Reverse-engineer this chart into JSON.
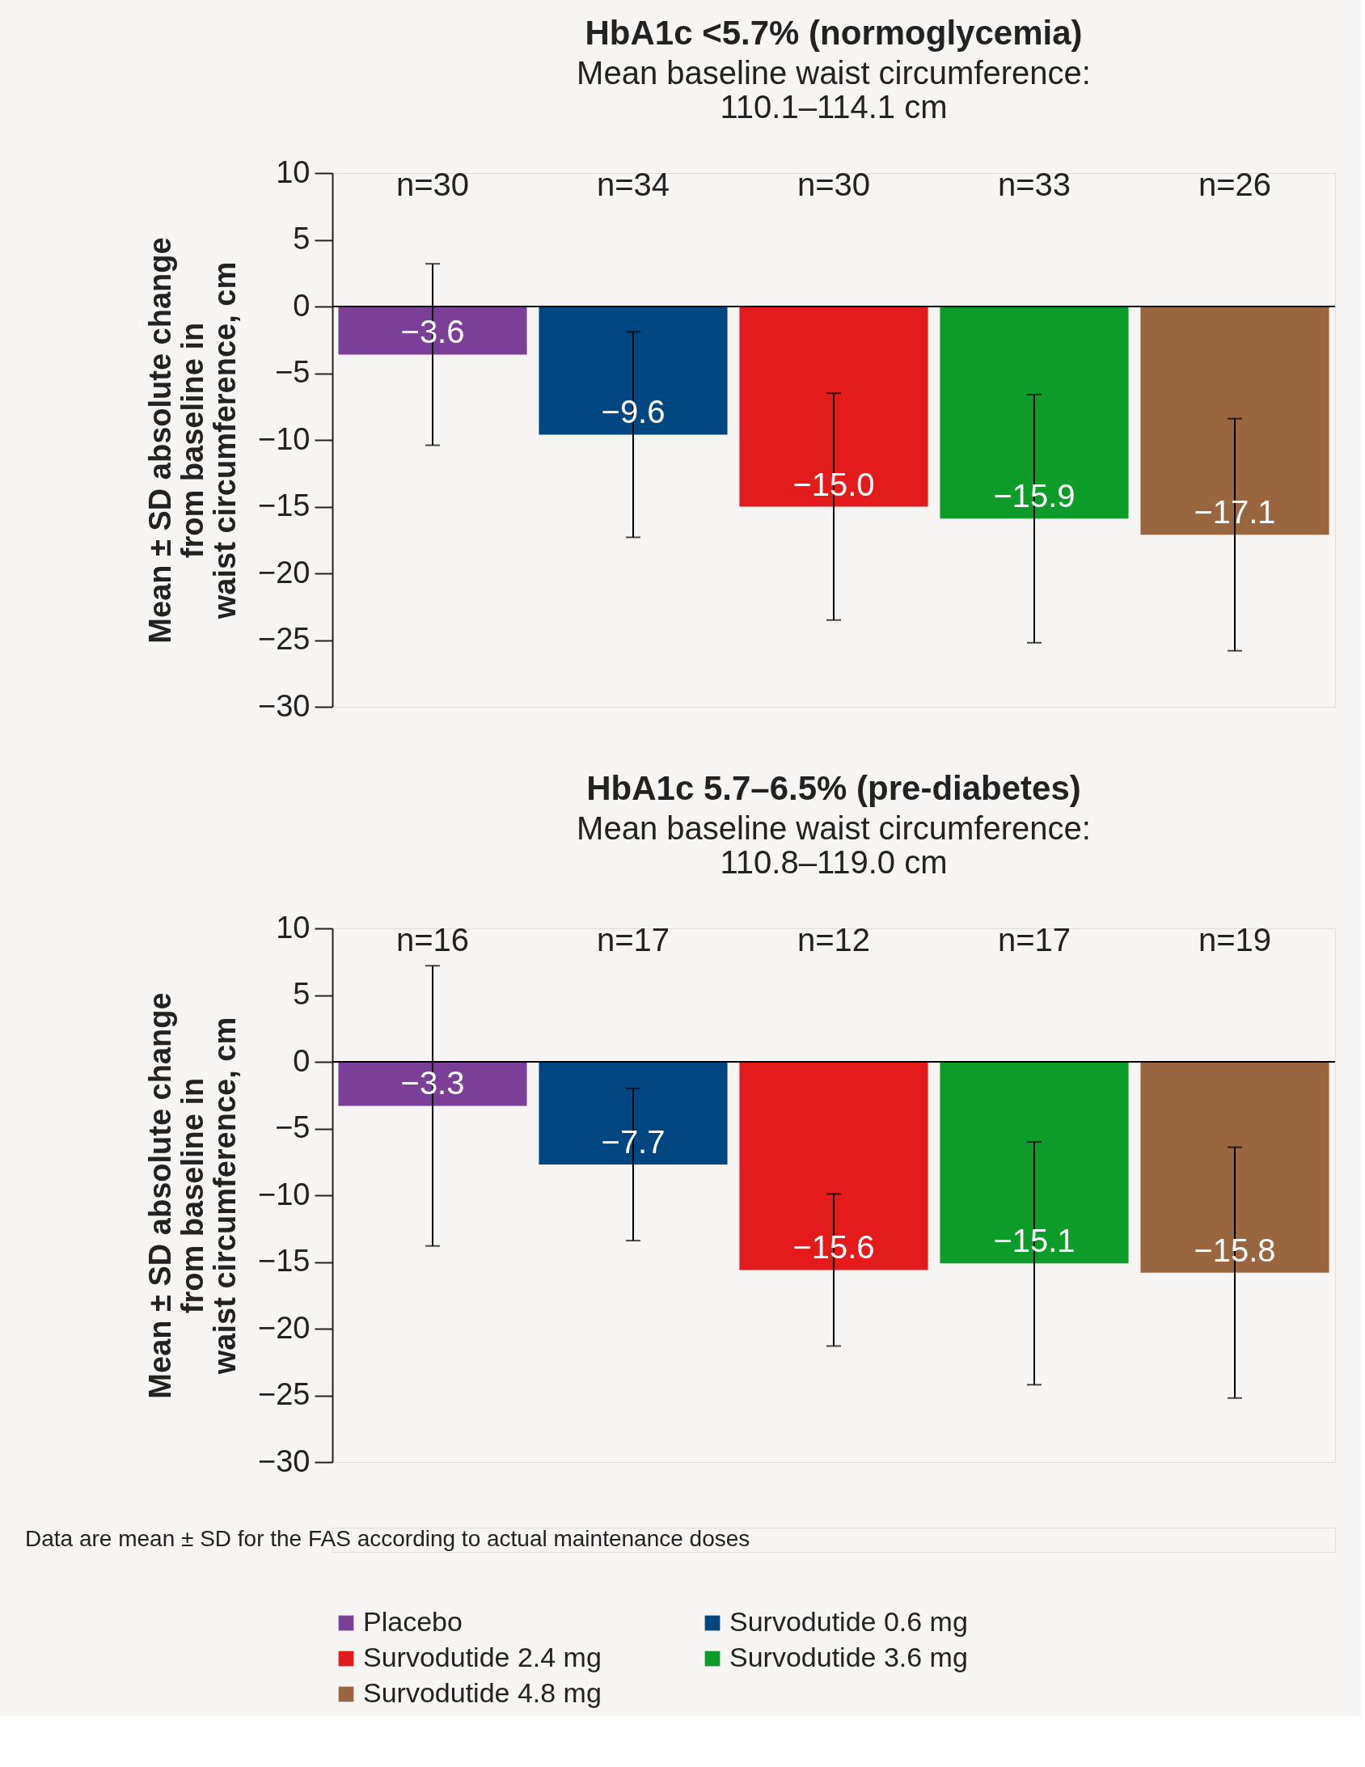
{
  "chart_data": [
    {
      "type": "bar",
      "title": "HbA1c <5.7% (normoglycemia)",
      "subtitle": "Mean baseline waist circumference:\n110.1–114.1 cm",
      "ylabel": "Mean ± SD absolute change\nfrom baseline in\nwaist circumference, cm",
      "categories": [
        null
      ],
      "series": [
        {
          "name": "Placebo",
          "color": "#7b3f98",
          "values": [
            -3.6
          ],
          "errors": [
            6.8
          ],
          "value_labels": [
            "−3.6"
          ]
        },
        {
          "name": "Survodutide 0.6 mg",
          "color": "#004680",
          "values": [
            -9.6
          ],
          "errors": [
            7.7
          ],
          "value_labels": [
            "−9.6"
          ]
        },
        {
          "name": "Survodutide 2.4 mg",
          "color": "#e31b1c",
          "values": [
            -15.0
          ],
          "errors": [
            8.5
          ],
          "value_labels": [
            "−15.0"
          ]
        },
        {
          "name": "Survodutide 3.6 mg",
          "color": "#0d9c2a",
          "values": [
            -15.9
          ],
          "errors": [
            9.3
          ],
          "value_labels": [
            "−15.9"
          ]
        },
        {
          "name": "Survodutide 4.8 mg",
          "color": "#996640",
          "values": [
            -17.1
          ],
          "errors": [
            8.7
          ],
          "value_labels": [
            "−17.1"
          ]
        }
      ],
      "ylim": [
        -30,
        10
      ],
      "yticks": [
        -30,
        -25,
        -20,
        -15,
        -10,
        -5,
        0,
        5,
        10
      ],
      "grid": false,
      "legend": "bottom",
      "ref_lines": [
        {
          "axis": "y",
          "value": 0
        }
      ],
      "annotations": [
        "n=30",
        "n=34",
        "n=30",
        "n=33",
        "n=26"
      ]
    },
    {
      "type": "bar",
      "title": "HbA1c 5.7–6.5% (pre-diabetes)",
      "subtitle": "Mean baseline waist circumference:\n110.8–119.0 cm",
      "ylabel": "Mean ± SD absolute change\nfrom baseline in\nwaist circumference, cm",
      "categories": [
        null
      ],
      "series": [
        {
          "name": "Placebo",
          "color": "#7b3f98",
          "values": [
            -3.3
          ],
          "errors": [
            10.5
          ],
          "value_labels": [
            "−3.3"
          ]
        },
        {
          "name": "Survodutide 0.6 mg",
          "color": "#004680",
          "values": [
            -7.7
          ],
          "errors": [
            5.7
          ],
          "value_labels": [
            "−7.7"
          ]
        },
        {
          "name": "Survodutide 2.4 mg",
          "color": "#e31b1c",
          "values": [
            -15.6
          ],
          "errors": [
            5.7
          ],
          "value_labels": [
            "−15.6"
          ]
        },
        {
          "name": "Survodutide 3.6 mg",
          "color": "#0d9c2a",
          "values": [
            -15.1
          ],
          "errors": [
            9.1
          ],
          "value_labels": [
            "−15.1"
          ]
        },
        {
          "name": "Survodutide 4.8 mg",
          "color": "#996640",
          "values": [
            -15.8
          ],
          "errors": [
            9.4
          ],
          "value_labels": [
            "−15.8"
          ]
        }
      ],
      "ylim": [
        -30,
        10
      ],
      "yticks": [
        -30,
        -25,
        -20,
        -15,
        -10,
        -5,
        0,
        5,
        10
      ],
      "grid": false,
      "legend": "bottom",
      "ref_lines": [
        {
          "axis": "y",
          "value": 0
        }
      ],
      "annotations": [
        "n=16",
        "n=17",
        "n=12",
        "n=17",
        "n=19",
        "Data are mean ± SD for the FAS according to actual maintenance doses"
      ]
    }
  ]
}
